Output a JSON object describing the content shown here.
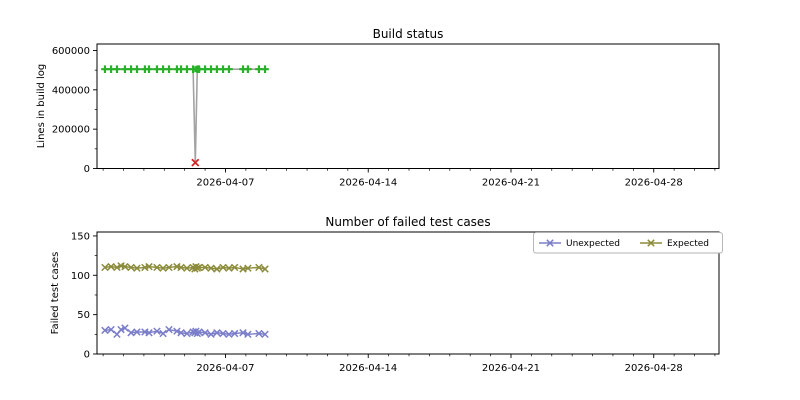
{
  "figure": {
    "background": "#ffffff",
    "text_color": "#000000",
    "spine_color": "#000000",
    "legend_border_color": "#b0b0b0"
  },
  "chart_data": [
    {
      "type": "line",
      "title": "Build status",
      "xlabel": "",
      "ylabel": "Lines in build log",
      "ylim": [
        0,
        633000
      ],
      "grid": false,
      "yticks": [
        {
          "value": 0,
          "label": "0"
        },
        {
          "value": 200000,
          "label": "200000"
        },
        {
          "value": 400000,
          "label": "400000"
        },
        {
          "value": 600000,
          "label": "600000"
        }
      ],
      "y_minor_ticks": [
        100000,
        300000,
        500000
      ],
      "x_axis": {
        "unit": "days since 2026-04-01 00:00",
        "range_days": [
          -0.3,
          30.2
        ],
        "major_ticks": [
          {
            "day": 6,
            "label": "2026-04-07"
          },
          {
            "day": 13,
            "label": "2026-04-14"
          },
          {
            "day": 20,
            "label": "2026-04-21"
          },
          {
            "day": 27,
            "label": "2026-04-28"
          }
        ],
        "minor_tick_days": [
          0,
          1,
          2,
          3,
          4,
          5,
          7,
          8,
          9,
          10,
          11,
          12,
          14,
          15,
          16,
          17,
          18,
          19,
          21,
          22,
          23,
          24,
          25,
          26,
          28,
          29,
          30
        ]
      },
      "legend": null,
      "series": [
        {
          "name": "build-log-lines",
          "line_color": "#a3a3a3",
          "line_width": 1.6,
          "marker": "plus",
          "marker_color": "#29b029",
          "marker_skip_days": [
            4.52
          ],
          "points": [
            [
              0.09,
              505000
            ],
            [
              0.39,
              505000
            ],
            [
              0.68,
              505000
            ],
            [
              1.07,
              505000
            ],
            [
              1.37,
              505000
            ],
            [
              1.66,
              505000
            ],
            [
              2.05,
              505000
            ],
            [
              2.25,
              505000
            ],
            [
              2.64,
              505000
            ],
            [
              2.94,
              505000
            ],
            [
              3.23,
              505000
            ],
            [
              3.62,
              505000
            ],
            [
              3.82,
              505000
            ],
            [
              4.11,
              505000
            ],
            [
              4.41,
              505000
            ],
            [
              4.52,
              30000
            ],
            [
              4.62,
              505000
            ],
            [
              4.7,
              505000
            ],
            [
              5.0,
              505000
            ],
            [
              5.29,
              505000
            ],
            [
              5.58,
              505000
            ],
            [
              5.88,
              505000
            ],
            [
              6.17,
              505000
            ],
            [
              6.86,
              505000
            ],
            [
              7.1,
              505000
            ],
            [
              7.64,
              505000
            ],
            [
              7.94,
              505000
            ]
          ]
        }
      ],
      "annotations": [
        {
          "marker": "x",
          "color": "#d62728",
          "day": 4.52,
          "value": 30000
        },
        {
          "marker": "square",
          "color": "#29b029",
          "day": 4.62,
          "value": 505000
        }
      ]
    },
    {
      "type": "line",
      "title": "Number of failed test cases",
      "xlabel": "",
      "ylabel": "Failed test cases",
      "ylim": [
        0,
        155
      ],
      "grid": false,
      "yticks": [
        {
          "value": 0,
          "label": "0"
        },
        {
          "value": 50,
          "label": "50"
        },
        {
          "value": 100,
          "label": "100"
        },
        {
          "value": 150,
          "label": "150"
        }
      ],
      "y_minor_ticks": [
        25,
        75,
        125
      ],
      "x_axis": {
        "unit": "days since 2026-04-01 00:00",
        "range_days": [
          -0.3,
          30.2
        ],
        "major_ticks": [
          {
            "day": 6,
            "label": "2026-04-07"
          },
          {
            "day": 13,
            "label": "2026-04-14"
          },
          {
            "day": 20,
            "label": "2026-04-21"
          },
          {
            "day": 27,
            "label": "2026-04-28"
          }
        ],
        "minor_tick_days": [
          0,
          1,
          2,
          3,
          4,
          5,
          7,
          8,
          9,
          10,
          11,
          12,
          14,
          15,
          16,
          17,
          18,
          19,
          21,
          22,
          23,
          24,
          25,
          26,
          28,
          29,
          30
        ]
      },
      "legend": {
        "position": "upper right",
        "entries": [
          {
            "label": "Unexpected",
            "color": "#7b7ec8",
            "marker": "x"
          },
          {
            "label": "Expected",
            "color": "#8b8b3c",
            "marker": "x"
          }
        ]
      },
      "x_days": [
        0.09,
        0.39,
        0.68,
        0.88,
        1.07,
        1.37,
        1.66,
        2.05,
        2.25,
        2.64,
        2.94,
        3.23,
        3.62,
        3.82,
        4.11,
        4.41,
        4.5,
        4.55,
        4.62,
        4.7,
        5.0,
        5.29,
        5.58,
        5.88,
        6.17,
        6.45,
        6.86,
        7.1,
        7.64,
        7.94
      ],
      "series": [
        {
          "name": "Unexpected",
          "line_color": "#7b7ec8",
          "line_width": 1.4,
          "marker": "x",
          "marker_color": "#7b7ec8",
          "values": [
            30,
            31,
            25,
            31,
            33,
            27,
            28,
            28,
            27,
            29,
            26,
            31,
            29,
            27,
            26,
            28,
            27,
            29,
            26,
            28,
            27,
            25,
            27,
            26,
            25,
            26,
            27,
            25,
            26,
            25
          ]
        },
        {
          "name": "Expected",
          "line_color": "#8b8b3c",
          "line_width": 1.4,
          "marker": "x",
          "marker_color": "#8b8b3c",
          "values": [
            110,
            111,
            110,
            112,
            111,
            110,
            109,
            110,
            111,
            110,
            109,
            110,
            111,
            110,
            109,
            110,
            108,
            111,
            109,
            110,
            110,
            109,
            108,
            110,
            109,
            110,
            108,
            109,
            110,
            108
          ]
        }
      ]
    }
  ]
}
